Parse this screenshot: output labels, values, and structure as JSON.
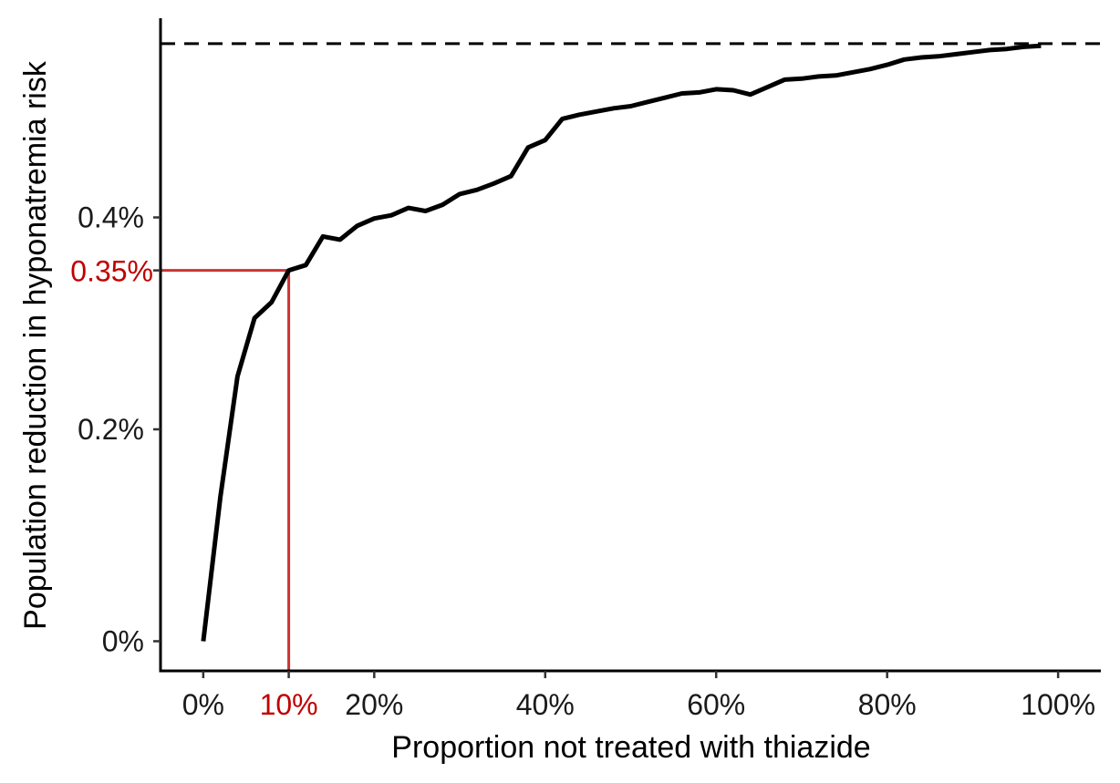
{
  "chart_data": {
    "type": "line",
    "title": "",
    "xlabel": "Proportion not treated with thiazide",
    "ylabel": "Population reduction in hyponatremia risk",
    "xlim": [
      -0.05,
      1.05
    ],
    "ylim": [
      -0.00028,
      0.00588
    ],
    "x_ticks": [
      {
        "value": 0,
        "label": "0%"
      },
      {
        "value": 0.2,
        "label": "20%"
      },
      {
        "value": 0.4,
        "label": "40%"
      },
      {
        "value": 0.6,
        "label": "60%"
      },
      {
        "value": 0.8,
        "label": "80%"
      },
      {
        "value": 1.0,
        "label": "100%"
      }
    ],
    "y_ticks": [
      {
        "value": 0,
        "label": "0%"
      },
      {
        "value": 0.002,
        "label": "0.2%"
      },
      {
        "value": 0.004,
        "label": "0.4%"
      }
    ],
    "reference_line": {
      "y": 0.00564,
      "style": "dashed",
      "color": "#000000"
    },
    "highlight": {
      "x": 0.1,
      "y": 0.0035,
      "x_label": "10%",
      "y_label": "0.35%",
      "color": "#cc3333",
      "label_color": "#c00000"
    },
    "series": [
      {
        "color": "#000000",
        "x": [
          0,
          0.02,
          0.04,
          0.06,
          0.08,
          0.1,
          0.12,
          0.14,
          0.16,
          0.18,
          0.2,
          0.22,
          0.24,
          0.26,
          0.28,
          0.3,
          0.32,
          0.34,
          0.36,
          0.38,
          0.4,
          0.42,
          0.44,
          0.46,
          0.48,
          0.5,
          0.52,
          0.54,
          0.56,
          0.58,
          0.6,
          0.62,
          0.64,
          0.66,
          0.68,
          0.7,
          0.72,
          0.74,
          0.76,
          0.78,
          0.8,
          0.82,
          0.84,
          0.86,
          0.88,
          0.9,
          0.92,
          0.94,
          0.96,
          0.98
        ],
        "y": [
          0,
          0.00136,
          0.0025,
          0.00305,
          0.0032,
          0.0035,
          0.00355,
          0.00382,
          0.00379,
          0.00392,
          0.00399,
          0.00402,
          0.00409,
          0.00406,
          0.00412,
          0.00422,
          0.00426,
          0.00432,
          0.00439,
          0.00466,
          0.00473,
          0.00493,
          0.00497,
          0.005,
          0.00503,
          0.00505,
          0.00509,
          0.00513,
          0.00517,
          0.00518,
          0.00521,
          0.0052,
          0.00516,
          0.00523,
          0.0053,
          0.00531,
          0.00533,
          0.00534,
          0.00537,
          0.0054,
          0.00544,
          0.00549,
          0.00551,
          0.00552,
          0.00554,
          0.00556,
          0.00558,
          0.00559,
          0.00561,
          0.00562
        ]
      }
    ]
  }
}
